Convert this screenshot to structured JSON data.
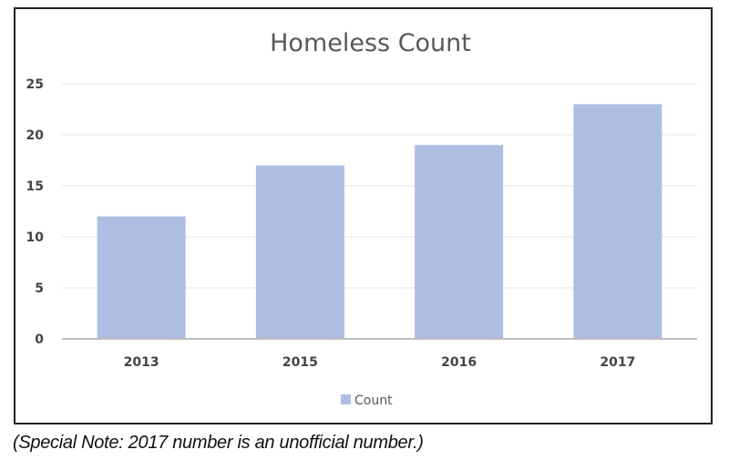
{
  "chart_data": {
    "type": "bar",
    "title": "Homeless Count",
    "categories": [
      "2013",
      "2015",
      "2016",
      "2017"
    ],
    "series": [
      {
        "name": "Count",
        "values": [
          12,
          17,
          19,
          23
        ],
        "color": "#aebde2"
      }
    ],
    "xlabel": "",
    "ylabel": "",
    "ylim": [
      0,
      25
    ],
    "yticks": [
      0,
      5,
      10,
      15,
      20,
      25
    ],
    "grid": true,
    "legend": "bottom"
  },
  "note": "(Special Note: 2017 number is an unofficial number.)"
}
